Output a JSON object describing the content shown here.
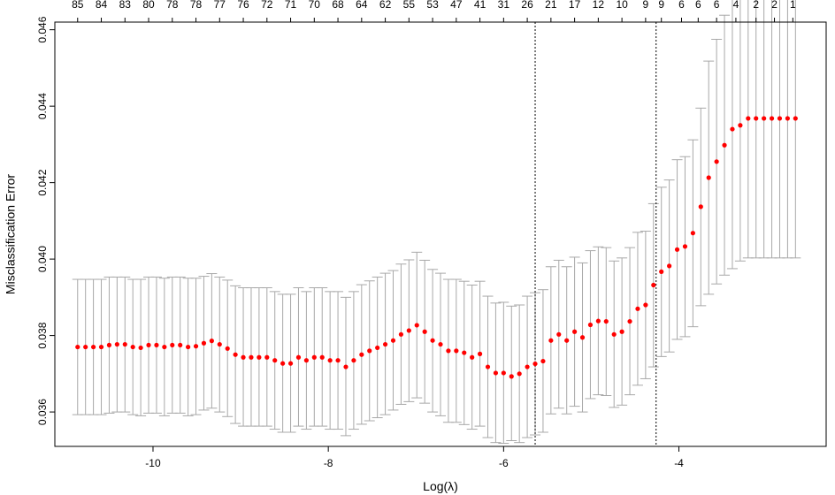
{
  "chart_data": {
    "type": "scatter",
    "xlabel": "Log(λ)",
    "ylabel": "Misclassification Error",
    "xlim": [
      -11.12,
      -2.32
    ],
    "ylim": [
      0.0351,
      0.0462
    ],
    "x_ticks": [
      -10,
      -8,
      -6,
      -4
    ],
    "y_ticks": [
      0.036,
      0.038,
      0.04,
      0.042,
      0.044,
      0.046
    ],
    "x_tick_labels": [
      "-10",
      "-8",
      "-6",
      "-4"
    ],
    "y_tick_labels": [
      "0.036",
      "0.038",
      "0.040",
      "0.042",
      "0.044",
      "0.046"
    ],
    "vlines": [
      -5.64,
      -4.26
    ],
    "top_axis_labels": [
      "85",
      "84",
      "83",
      "80",
      "78",
      "78",
      "77",
      "76",
      "72",
      "71",
      "70",
      "68",
      "64",
      "62",
      "55",
      "53",
      "47",
      "41",
      "31",
      "26",
      "21",
      "17",
      "12",
      "10",
      "9",
      "9",
      "6",
      "6",
      "6",
      "4",
      "2",
      "2",
      "1"
    ],
    "top_axis_x": [
      -10.86,
      -10.59,
      -10.32,
      -10.05,
      -9.78,
      -9.51,
      -9.24,
      -8.97,
      -8.7,
      -8.43,
      -8.16,
      -7.89,
      -7.62,
      -7.35,
      -7.08,
      -6.81,
      -6.54,
      -6.27,
      -6.0,
      -5.73,
      -5.46,
      -5.19,
      -4.92,
      -4.65,
      -4.38,
      -4.2,
      -3.97,
      -3.78,
      -3.57,
      -3.35,
      -3.12,
      -2.91,
      -2.7
    ],
    "point_color": "#ff0000",
    "errorbar_color": "#a8a8a8",
    "x": [
      -10.86,
      -10.77,
      -10.68,
      -10.59,
      -10.5,
      -10.41,
      -10.32,
      -10.23,
      -10.14,
      -10.05,
      -9.96,
      -9.87,
      -9.78,
      -9.69,
      -9.6,
      -9.51,
      -9.42,
      -9.33,
      -9.24,
      -9.15,
      -9.06,
      -8.97,
      -8.88,
      -8.79,
      -8.7,
      -8.61,
      -8.52,
      -8.43,
      -8.34,
      -8.25,
      -8.16,
      -8.07,
      -7.98,
      -7.89,
      -7.8,
      -7.71,
      -7.62,
      -7.53,
      -7.44,
      -7.35,
      -7.26,
      -7.17,
      -7.08,
      -6.99,
      -6.9,
      -6.81,
      -6.72,
      -6.63,
      -6.54,
      -6.45,
      -6.36,
      -6.27,
      -6.18,
      -6.09,
      -6.0,
      -5.91,
      -5.82,
      -5.73,
      -5.64,
      -5.55,
      -5.46,
      -5.37,
      -5.28,
      -5.19,
      -5.1,
      -5.01,
      -4.92,
      -4.83,
      -4.74,
      -4.65,
      -4.56,
      -4.47,
      -4.38,
      -4.29,
      -4.2,
      -4.11,
      -4.02,
      -3.93,
      -3.84,
      -3.75,
      -3.66,
      -3.57,
      -3.48,
      -3.39,
      -3.3,
      -3.21,
      -3.12,
      -3.03,
      -2.94,
      -2.85,
      -2.76,
      -2.67
    ],
    "y": [
      0.0377,
      0.0377,
      0.0377,
      0.0377,
      0.03775,
      0.03777,
      0.03777,
      0.0377,
      0.03768,
      0.03775,
      0.03775,
      0.0377,
      0.03775,
      0.03775,
      0.0377,
      0.03772,
      0.0378,
      0.03786,
      0.03777,
      0.03766,
      0.0375,
      0.03743,
      0.03743,
      0.03743,
      0.03743,
      0.03735,
      0.03727,
      0.03727,
      0.03743,
      0.03735,
      0.03743,
      0.03743,
      0.03735,
      0.03735,
      0.03718,
      0.03735,
      0.0375,
      0.0376,
      0.03768,
      0.03777,
      0.03787,
      0.03803,
      0.03813,
      0.03827,
      0.0381,
      0.03787,
      0.03777,
      0.0376,
      0.0376,
      0.03755,
      0.03743,
      0.03752,
      0.03718,
      0.03702,
      0.03702,
      0.03693,
      0.037,
      0.03718,
      0.03726,
      0.03733,
      0.03787,
      0.03803,
      0.03787,
      0.0381,
      0.03795,
      0.03828,
      0.03838,
      0.03837,
      0.03803,
      0.0381,
      0.03837,
      0.0387,
      0.0388,
      0.03932,
      0.03967,
      0.03982,
      0.04025,
      0.04033,
      0.04068,
      0.04137,
      0.04213,
      0.04255,
      0.04298,
      0.0434,
      0.0435,
      0.04368,
      0.04368,
      0.04368,
      0.04368,
      0.04368,
      0.04368,
      0.04368
    ],
    "lower": [
      0.03593,
      0.03593,
      0.03593,
      0.03593,
      0.03597,
      0.036,
      0.036,
      0.03593,
      0.0359,
      0.03597,
      0.03597,
      0.0359,
      0.03597,
      0.03597,
      0.0359,
      0.03593,
      0.03605,
      0.0361,
      0.036,
      0.03588,
      0.0357,
      0.03563,
      0.03563,
      0.03563,
      0.03563,
      0.03555,
      0.03547,
      0.03547,
      0.03563,
      0.03555,
      0.03563,
      0.03563,
      0.03555,
      0.03555,
      0.03538,
      0.03555,
      0.03568,
      0.03577,
      0.03585,
      0.03593,
      0.03605,
      0.0362,
      0.03627,
      0.03637,
      0.03623,
      0.036,
      0.0359,
      0.03573,
      0.03573,
      0.03567,
      0.03555,
      0.03563,
      0.03533,
      0.0352,
      0.03518,
      0.03525,
      0.0352,
      0.03533,
      0.0354,
      0.03547,
      0.03595,
      0.0361,
      0.03595,
      0.03615,
      0.036,
      0.03635,
      0.03645,
      0.03643,
      0.03612,
      0.03618,
      0.03645,
      0.0367,
      0.03687,
      0.03718,
      0.03745,
      0.03757,
      0.0379,
      0.03797,
      0.03823,
      0.03878,
      0.03908,
      0.03935,
      0.03958,
      0.03975,
      0.03995,
      0.04003,
      0.04003,
      0.04003,
      0.04003,
      0.04003,
      0.04003,
      0.04003
    ],
    "upper": [
      0.03947,
      0.03947,
      0.03947,
      0.03947,
      0.03953,
      0.03953,
      0.03953,
      0.03947,
      0.03947,
      0.03953,
      0.03953,
      0.0395,
      0.03953,
      0.03953,
      0.0395,
      0.0395,
      0.03955,
      0.03962,
      0.03953,
      0.03945,
      0.0393,
      0.03925,
      0.03925,
      0.03925,
      0.03925,
      0.03915,
      0.03908,
      0.03908,
      0.03925,
      0.03915,
      0.03925,
      0.03925,
      0.03915,
      0.03915,
      0.039,
      0.03915,
      0.03933,
      0.03943,
      0.03953,
      0.03963,
      0.0397,
      0.03987,
      0.03998,
      0.04018,
      0.03997,
      0.03973,
      0.03963,
      0.03947,
      0.03947,
      0.03942,
      0.03932,
      0.03942,
      0.03903,
      0.03885,
      0.03887,
      0.03877,
      0.0388,
      0.03903,
      0.03912,
      0.0392,
      0.0398,
      0.03997,
      0.0398,
      0.04005,
      0.0399,
      0.04022,
      0.04032,
      0.0403,
      0.03995,
      0.04003,
      0.0403,
      0.0407,
      0.04073,
      0.04145,
      0.04188,
      0.04207,
      0.0426,
      0.04268,
      0.04312,
      0.04395,
      0.04518,
      0.04575,
      0.04638,
      0.04705,
      0.04705,
      0.04733,
      0.04733,
      0.04733,
      0.04733,
      0.04733,
      0.04733,
      0.04733
    ]
  }
}
